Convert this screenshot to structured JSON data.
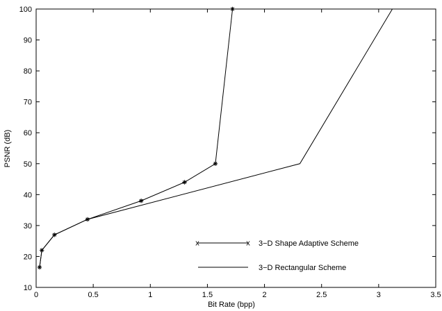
{
  "chart_data": {
    "type": "line",
    "title": "",
    "xlabel": "Bit Rate (bpp)",
    "ylabel": "PSNR (dB)",
    "xlim": [
      0,
      3.5
    ],
    "ylim": [
      10,
      100
    ],
    "xticks": [
      "0",
      "0.5",
      "1",
      "1.5",
      "2",
      "2.5",
      "3",
      "3.5"
    ],
    "yticks": [
      "10",
      "20",
      "30",
      "40",
      "50",
      "60",
      "70",
      "80",
      "90",
      "100"
    ],
    "grid": false,
    "legend_position": "bottom-right",
    "series": [
      {
        "name": "3−D Shape Adaptive Scheme",
        "marker": "star",
        "legend_marker": "x",
        "color": "#000000",
        "x": [
          0.03,
          0.05,
          0.16,
          0.45,
          0.92,
          1.3,
          1.57,
          1.72
        ],
        "y": [
          16.5,
          22,
          27,
          32,
          38,
          44,
          50,
          100
        ]
      },
      {
        "name": "3−D Rectangular Scheme",
        "marker": "none",
        "color": "#000000",
        "x": [
          0.03,
          0.05,
          0.16,
          0.45,
          2.31,
          3.12
        ],
        "y": [
          16.5,
          22,
          27,
          32,
          50,
          100
        ]
      }
    ]
  }
}
